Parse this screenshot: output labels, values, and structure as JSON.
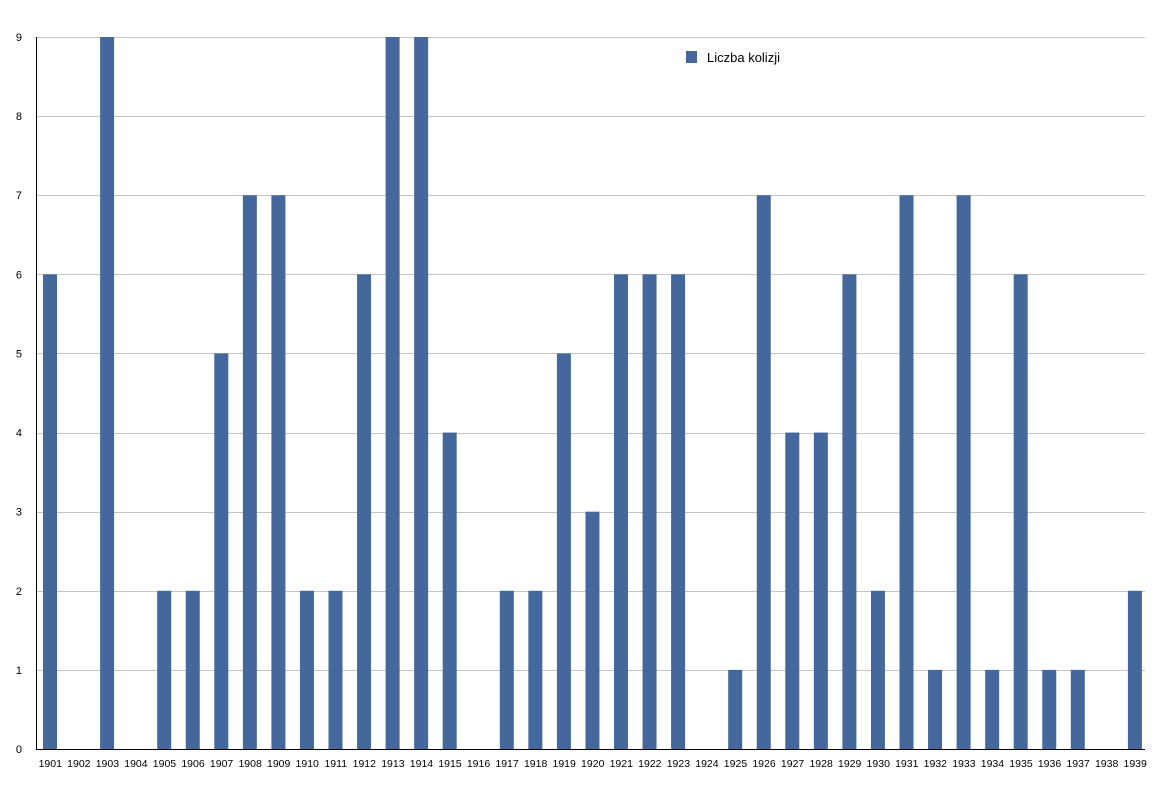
{
  "chart_data": {
    "type": "bar",
    "title": "",
    "xlabel": "",
    "ylabel": "",
    "ylim": [
      0,
      9
    ],
    "yticks": [
      0,
      1,
      2,
      3,
      4,
      5,
      6,
      7,
      8,
      9
    ],
    "grid": true,
    "legend_position": "top-center",
    "categories": [
      "1901",
      "1902",
      "1903",
      "1904",
      "1905",
      "1906",
      "1907",
      "1908",
      "1909",
      "1910",
      "1911",
      "1912",
      "1913",
      "1914",
      "1915",
      "1916",
      "1917",
      "1918",
      "1919",
      "1920",
      "1921",
      "1922",
      "1923",
      "1924",
      "1925",
      "1926",
      "1927",
      "1928",
      "1929",
      "1930",
      "1931",
      "1932",
      "1933",
      "1934",
      "1935",
      "1936",
      "1937",
      "1938",
      "1939"
    ],
    "series": [
      {
        "name": "Liczba kolizji",
        "color": "#44689b",
        "values": [
          6,
          0,
          9,
          0,
          2,
          2,
          5,
          7,
          7,
          2,
          2,
          6,
          9,
          9,
          4,
          0,
          2,
          2,
          5,
          3,
          6,
          6,
          6,
          0,
          1,
          7,
          4,
          4,
          6,
          2,
          7,
          1,
          7,
          1,
          6,
          1,
          1,
          0,
          2
        ]
      }
    ]
  },
  "colors": {
    "bar": "#44689b",
    "gridline": "#c4c4c4",
    "axis": "#000000"
  }
}
